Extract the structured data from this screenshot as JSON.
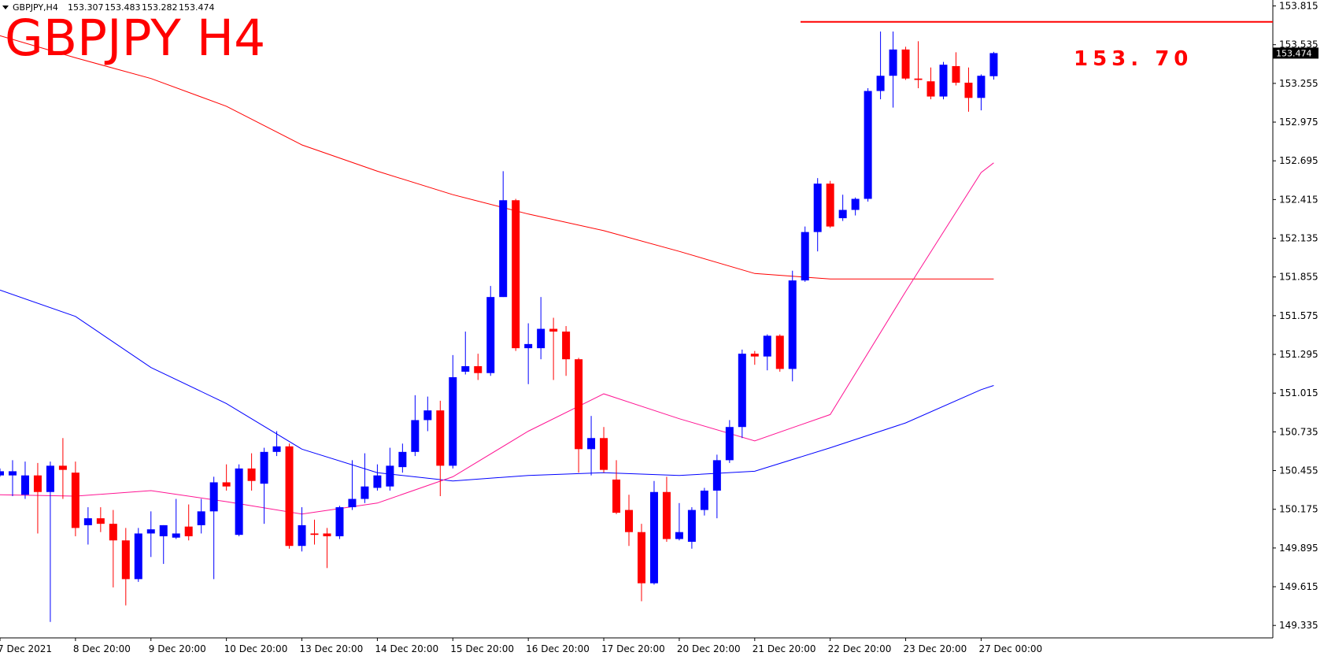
{
  "chart_data": {
    "type": "candlestick",
    "symbol": "GBPJPY,H4",
    "title": "GBPJPY H4",
    "up_color": "#0000ff",
    "down_color": "#ff0000",
    "categories": [
      "7 Dec 2021",
      null,
      null,
      null,
      null,
      null,
      "8 Dec 20:00",
      null,
      null,
      null,
      null,
      null,
      "9 Dec 20:00",
      null,
      null,
      null,
      null,
      null,
      "10 Dec 20:00",
      null,
      null,
      null,
      null,
      null,
      "13 Dec 20:00",
      null,
      null,
      null,
      null,
      null,
      "14 Dec 20:00",
      null,
      null,
      null,
      null,
      null,
      "15 Dec 20:00",
      null,
      null,
      null,
      null,
      null,
      "16 Dec 20:00",
      null,
      null,
      null,
      null,
      null,
      "17 Dec 20:00",
      null,
      null,
      null,
      null,
      null,
      "20 Dec 20:00",
      null,
      null,
      null,
      null,
      null,
      "21 Dec 20:00",
      null,
      null,
      null,
      null,
      null,
      "22 Dec 20:00",
      null,
      null,
      null,
      null,
      null,
      "23 Dec 20:00",
      null,
      null,
      null,
      null,
      null,
      "27 Dec 00:00",
      null
    ],
    "open": [
      150.42,
      150.42,
      150.28,
      150.42,
      150.3,
      150.49,
      150.44,
      150.06,
      150.11,
      150.07,
      149.95,
      149.67,
      150.0,
      149.98,
      149.97,
      150.05,
      150.06,
      150.16,
      150.37,
      149.99,
      150.47,
      150.36,
      150.59,
      150.63,
      149.91,
      150.0,
      150.0,
      149.98,
      150.19,
      150.25,
      150.33,
      150.34,
      150.48,
      150.59,
      150.82,
      150.89,
      150.49,
      151.17,
      151.21,
      151.16,
      151.71,
      152.41,
      151.34,
      151.34,
      151.48,
      151.46,
      151.26,
      150.61,
      150.69,
      150.39,
      150.17,
      150.01,
      149.64,
      150.3,
      149.96,
      149.94,
      150.17,
      150.31,
      150.53,
      150.77,
      151.3,
      151.28,
      151.43,
      151.19,
      151.83,
      152.18,
      152.53,
      152.28,
      152.34,
      152.42,
      153.2,
      153.31,
      153.5,
      153.29,
      153.27,
      153.16,
      153.38,
      153.26,
      153.15,
      153.307
    ],
    "high": [
      150.47,
      150.53,
      150.52,
      150.51,
      150.52,
      150.69,
      150.52,
      150.19,
      150.19,
      150.17,
      150.04,
      150.04,
      150.16,
      150.06,
      150.25,
      150.21,
      150.25,
      150.41,
      150.5,
      150.5,
      150.58,
      150.62,
      150.74,
      150.65,
      150.19,
      150.1,
      150.04,
      150.2,
      150.53,
      150.58,
      150.5,
      150.62,
      150.65,
      151.0,
      150.99,
      150.96,
      151.29,
      151.46,
      151.3,
      151.79,
      152.62,
      152.42,
      151.52,
      151.71,
      151.56,
      151.5,
      151.27,
      150.85,
      150.77,
      150.53,
      150.28,
      150.07,
      150.38,
      150.41,
      150.22,
      150.19,
      150.33,
      150.57,
      150.82,
      151.33,
      151.32,
      151.44,
      151.44,
      151.9,
      152.22,
      152.57,
      152.55,
      152.45,
      152.43,
      153.22,
      153.63,
      153.63,
      153.52,
      153.56,
      153.37,
      153.41,
      153.48,
      153.37,
      153.32,
      153.483
    ],
    "low": [
      150.41,
      150.27,
      150.25,
      150.0,
      149.36,
      150.25,
      149.98,
      149.92,
      150.01,
      149.61,
      149.48,
      149.65,
      149.83,
      149.78,
      149.96,
      149.95,
      150.0,
      149.67,
      150.31,
      149.98,
      150.31,
      150.07,
      150.56,
      149.89,
      149.87,
      149.92,
      149.75,
      149.96,
      150.17,
      150.22,
      150.31,
      150.31,
      150.44,
      150.56,
      150.74,
      150.27,
      150.47,
      151.15,
      151.11,
      151.14,
      151.71,
      151.32,
      151.08,
      151.26,
      151.11,
      151.14,
      150.44,
      150.42,
      150.44,
      150.14,
      149.91,
      149.51,
      149.63,
      149.94,
      149.95,
      149.89,
      150.13,
      150.11,
      150.51,
      150.69,
      151.22,
      151.18,
      151.17,
      151.1,
      151.82,
      152.04,
      152.21,
      152.26,
      152.3,
      152.4,
      153.14,
      153.08,
      153.28,
      153.22,
      153.14,
      153.14,
      153.24,
      153.05,
      153.06,
      153.282
    ],
    "close": [
      150.45,
      150.45,
      150.42,
      150.3,
      150.49,
      150.46,
      150.04,
      150.11,
      150.07,
      149.95,
      149.67,
      150.0,
      150.03,
      150.06,
      150.0,
      149.98,
      150.16,
      150.37,
      150.34,
      150.47,
      150.38,
      150.59,
      150.63,
      149.91,
      150.06,
      149.99,
      149.98,
      150.19,
      150.25,
      150.34,
      150.42,
      150.49,
      150.59,
      150.82,
      150.89,
      150.49,
      151.13,
      151.21,
      151.16,
      151.71,
      152.41,
      151.34,
      151.37,
      151.48,
      151.46,
      151.26,
      150.61,
      150.69,
      150.46,
      150.15,
      150.01,
      149.64,
      150.3,
      149.96,
      150.01,
      150.17,
      150.31,
      150.53,
      150.77,
      151.3,
      151.28,
      151.43,
      151.19,
      151.83,
      152.18,
      152.53,
      152.22,
      152.34,
      152.42,
      153.2,
      153.31,
      153.5,
      153.29,
      153.28,
      153.16,
      153.39,
      153.26,
      153.15,
      153.31,
      153.474
    ],
    "lines": [
      {
        "color": "#ff0000",
        "x": [
          0,
          6,
          12,
          18,
          24,
          30,
          36,
          42,
          48,
          54,
          60,
          66,
          72,
          78,
          79
        ],
        "values": [
          153.6,
          153.44,
          153.29,
          153.09,
          152.81,
          152.62,
          152.45,
          152.31,
          152.19,
          152.04,
          151.88,
          151.84,
          151.84,
          151.84,
          151.84
        ]
      },
      {
        "color": "#0000ff",
        "x": [
          0,
          6,
          12,
          18,
          24,
          30,
          36,
          42,
          48,
          54,
          60,
          66,
          72,
          78,
          79
        ],
        "values": [
          151.76,
          151.57,
          151.2,
          150.94,
          150.61,
          150.44,
          150.38,
          150.42,
          150.44,
          150.42,
          150.45,
          150.62,
          150.8,
          151.04,
          151.07
        ]
      },
      {
        "color": "#ff1493",
        "x": [
          0,
          6,
          12,
          18,
          24,
          30,
          36,
          42,
          48,
          54,
          60,
          66,
          72,
          78,
          79
        ],
        "values": [
          150.28,
          150.27,
          150.31,
          150.23,
          150.14,
          150.22,
          150.41,
          150.74,
          151.01,
          150.83,
          150.67,
          150.86,
          151.75,
          152.61,
          152.68
        ]
      }
    ],
    "hline": {
      "value": 153.7,
      "label": "153. 70",
      "color": "#ff0000"
    },
    "ylim": [
      149.245,
      153.858
    ],
    "yticks": [
      153.815,
      153.535,
      153.255,
      152.975,
      152.695,
      152.415,
      152.135,
      151.855,
      151.575,
      151.295,
      151.015,
      150.735,
      150.455,
      150.175,
      149.895,
      149.615,
      149.335
    ]
  }
}
